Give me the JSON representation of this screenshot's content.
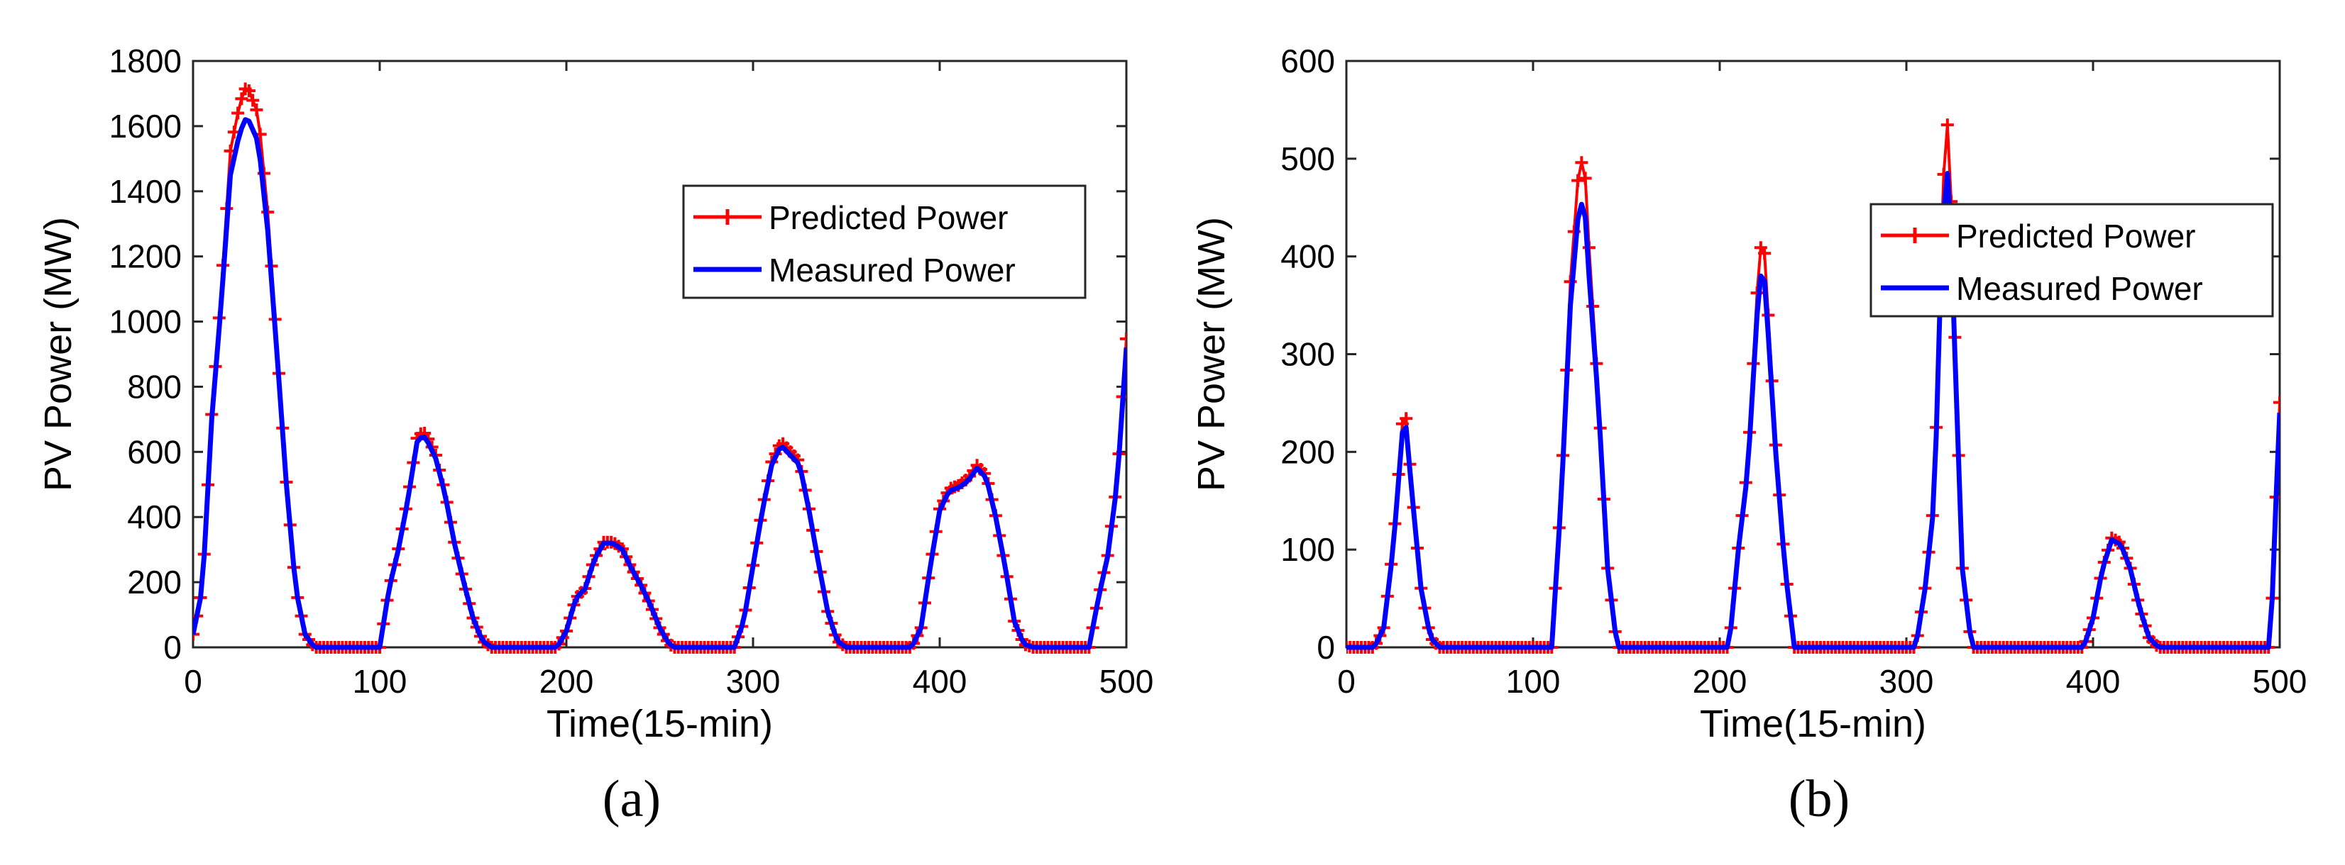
{
  "colors": {
    "predicted": "#ff0000",
    "measured": "#0000ff",
    "axis": "#262626"
  },
  "chart_data": [
    {
      "type": "line",
      "panel_label": "(a)",
      "xlabel": "Time(15-min)",
      "ylabel": "PV Power (MW)",
      "xlim": [
        0,
        500
      ],
      "ylim": [
        0,
        1800
      ],
      "xticks": [
        0,
        100,
        200,
        300,
        400,
        500
      ],
      "yticks": [
        0,
        200,
        400,
        600,
        800,
        1000,
        1200,
        1400,
        1600,
        1800
      ],
      "legend": {
        "position": "upper-right",
        "entries": [
          "Predicted Power",
          "Measured Power"
        ]
      },
      "anchors": [
        [
          0,
          40
        ],
        [
          5,
          180
        ],
        [
          10,
          700
        ],
        [
          15,
          1050
        ],
        [
          20,
          1450
        ],
        [
          25,
          1580
        ],
        [
          28,
          1620
        ],
        [
          30,
          1615
        ],
        [
          35,
          1550
        ],
        [
          40,
          1280
        ],
        [
          45,
          900
        ],
        [
          50,
          500
        ],
        [
          55,
          180
        ],
        [
          60,
          40
        ],
        [
          65,
          0
        ],
        [
          100,
          0
        ],
        [
          105,
          180
        ],
        [
          110,
          300
        ],
        [
          115,
          450
        ],
        [
          120,
          630
        ],
        [
          123,
          650
        ],
        [
          125,
          640
        ],
        [
          130,
          580
        ],
        [
          135,
          470
        ],
        [
          140,
          320
        ],
        [
          145,
          200
        ],
        [
          150,
          90
        ],
        [
          155,
          20
        ],
        [
          160,
          0
        ],
        [
          195,
          0
        ],
        [
          200,
          50
        ],
        [
          205,
          150
        ],
        [
          210,
          180
        ],
        [
          215,
          270
        ],
        [
          220,
          320
        ],
        [
          225,
          320
        ],
        [
          230,
          300
        ],
        [
          235,
          240
        ],
        [
          240,
          190
        ],
        [
          245,
          130
        ],
        [
          250,
          60
        ],
        [
          255,
          10
        ],
        [
          258,
          0
        ],
        [
          290,
          0
        ],
        [
          295,
          80
        ],
        [
          300,
          250
        ],
        [
          305,
          420
        ],
        [
          310,
          560
        ],
        [
          315,
          620
        ],
        [
          320,
          590
        ],
        [
          325,
          560
        ],
        [
          330,
          420
        ],
        [
          335,
          260
        ],
        [
          340,
          110
        ],
        [
          345,
          20
        ],
        [
          350,
          0
        ],
        [
          385,
          0
        ],
        [
          390,
          60
        ],
        [
          395,
          250
        ],
        [
          400,
          420
        ],
        [
          405,
          480
        ],
        [
          410,
          490
        ],
        [
          415,
          510
        ],
        [
          420,
          550
        ],
        [
          425,
          520
        ],
        [
          430,
          400
        ],
        [
          435,
          250
        ],
        [
          440,
          80
        ],
        [
          445,
          10
        ],
        [
          450,
          0
        ],
        [
          480,
          0
        ],
        [
          485,
          150
        ],
        [
          490,
          280
        ],
        [
          495,
          500
        ],
        [
          500,
          920
        ]
      ],
      "series": [
        {
          "name": "Measured Power",
          "style": "solid-line"
        },
        {
          "name": "Predicted Power",
          "style": "line-plus-markers",
          "peak_overshoot": 1.03
        }
      ]
    },
    {
      "type": "line",
      "panel_label": "(b)",
      "xlabel": "Time(15-min)",
      "ylabel": "PV Power (MW)",
      "xlim": [
        0,
        500
      ],
      "ylim": [
        0,
        600
      ],
      "xticks": [
        0,
        100,
        200,
        300,
        400,
        500
      ],
      "yticks": [
        0,
        100,
        200,
        300,
        400,
        500,
        600
      ],
      "legend": {
        "position": "upper-right",
        "entries": [
          "Predicted Power",
          "Measured Power"
        ]
      },
      "anchors": [
        [
          0,
          0
        ],
        [
          15,
          0
        ],
        [
          20,
          20
        ],
        [
          25,
          100
        ],
        [
          30,
          220
        ],
        [
          32,
          225
        ],
        [
          35,
          160
        ],
        [
          40,
          60
        ],
        [
          45,
          10
        ],
        [
          50,
          0
        ],
        [
          110,
          0
        ],
        [
          115,
          150
        ],
        [
          120,
          350
        ],
        [
          125,
          460
        ],
        [
          128,
          440
        ],
        [
          130,
          380
        ],
        [
          135,
          250
        ],
        [
          140,
          80
        ],
        [
          145,
          0
        ],
        [
          205,
          0
        ],
        [
          210,
          100
        ],
        [
          215,
          180
        ],
        [
          220,
          340
        ],
        [
          223,
          400
        ],
        [
          225,
          350
        ],
        [
          230,
          200
        ],
        [
          235,
          80
        ],
        [
          240,
          0
        ],
        [
          305,
          0
        ],
        [
          310,
          60
        ],
        [
          315,
          150
        ],
        [
          318,
          350
        ],
        [
          321,
          490
        ],
        [
          323,
          480
        ],
        [
          326,
          300
        ],
        [
          330,
          80
        ],
        [
          335,
          0
        ],
        [
          395,
          0
        ],
        [
          400,
          30
        ],
        [
          405,
          80
        ],
        [
          410,
          110
        ],
        [
          415,
          105
        ],
        [
          420,
          80
        ],
        [
          425,
          40
        ],
        [
          430,
          10
        ],
        [
          435,
          0
        ],
        [
          495,
          0
        ],
        [
          498,
          150
        ],
        [
          500,
          240
        ]
      ],
      "series": [
        {
          "name": "Measured Power",
          "style": "solid-line"
        },
        {
          "name": "Predicted Power",
          "style": "line-plus-markers",
          "peak_overshoot": 1.06
        }
      ]
    }
  ]
}
